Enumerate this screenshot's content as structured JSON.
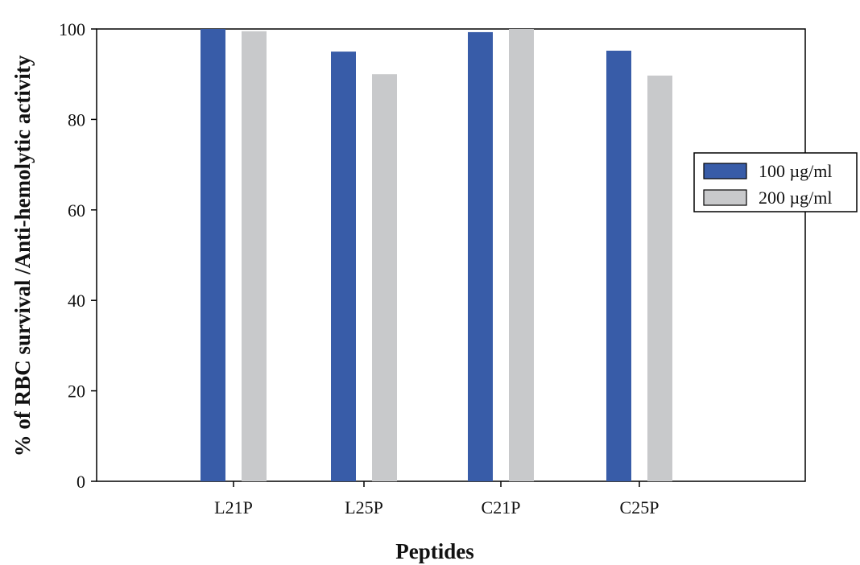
{
  "chart_data": {
    "type": "bar",
    "categories": [
      "L21P",
      "L25P",
      "C21P",
      "C25P"
    ],
    "series": [
      {
        "name": "100 µg/ml",
        "color": "#385ca8",
        "values": [
          100,
          95,
          99.3,
          95.2
        ]
      },
      {
        "name": "200 µg/ml",
        "color": "#c8c9cb",
        "values": [
          99.5,
          90,
          100,
          89.7
        ]
      }
    ],
    "title": "",
    "xlabel": "Peptides",
    "ylabel": "% of RBC survival /Anti-hemolytic activity",
    "ylim": [
      0,
      100
    ],
    "yticks": [
      0,
      20,
      40,
      60,
      80,
      100
    ],
    "grid": false,
    "legend_position": "right"
  }
}
